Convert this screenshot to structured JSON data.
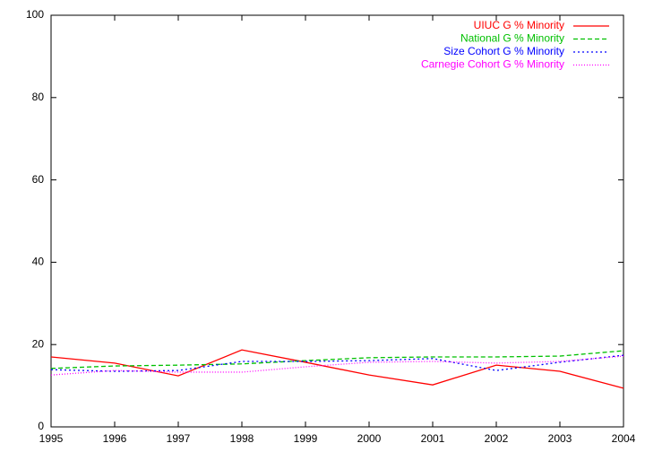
{
  "chart_data": {
    "type": "line",
    "x": [
      1995,
      1996,
      1997,
      1998,
      1999,
      2000,
      2001,
      2002,
      2003,
      2004
    ],
    "xlim": [
      1995,
      2004
    ],
    "xticks": [
      1995,
      1996,
      1997,
      1998,
      1999,
      2000,
      2001,
      2002,
      2003,
      2004
    ],
    "ylim": [
      0,
      100
    ],
    "yticks": [
      0,
      20,
      40,
      60,
      80,
      100
    ],
    "legend": "top-right",
    "series": [
      {
        "name": "UIUC G % Minority",
        "color": "#ff0000",
        "values": [
          17.0,
          15.5,
          12.4,
          18.7,
          15.7,
          12.6,
          10.2,
          15.0,
          13.5,
          9.4
        ]
      },
      {
        "name": "National G % Minority",
        "color": "#00c000",
        "values": [
          14.2,
          14.8,
          15.0,
          15.3,
          16.1,
          16.8,
          17.0,
          17.0,
          17.2,
          18.5
        ]
      },
      {
        "name": "Size Cohort G % Minority",
        "color": "#0000ff",
        "values": [
          13.9,
          13.5,
          13.7,
          15.9,
          15.9,
          16.1,
          16.6,
          13.7,
          15.7,
          17.4
        ]
      },
      {
        "name": "Carnegie Cohort G % Minority",
        "color": "#ff00ff",
        "values": [
          12.6,
          13.7,
          13.3,
          13.3,
          14.6,
          15.7,
          15.9,
          15.5,
          15.9,
          17.2
        ]
      }
    ]
  }
}
